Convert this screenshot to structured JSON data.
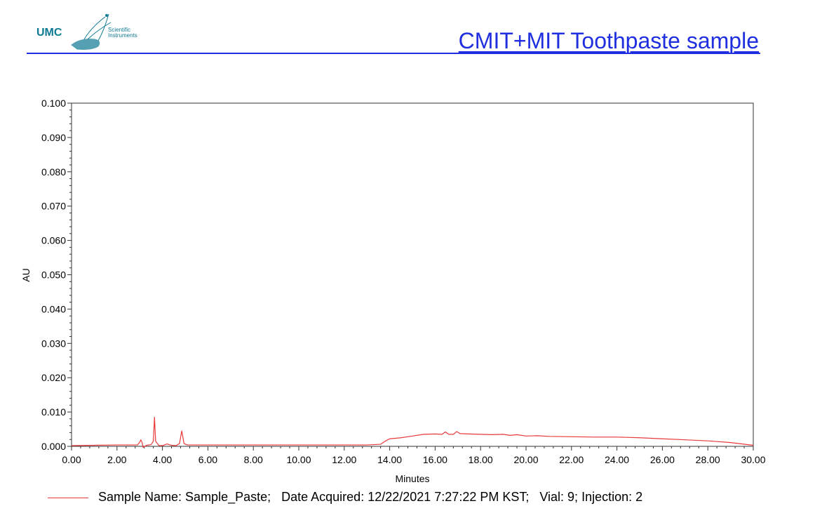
{
  "header": {
    "logo_text": "UMC",
    "logo_sub_line1": "Scientific",
    "logo_sub_line2": "Instruments",
    "title": "CMIT+MIT Toothpaste sample",
    "accent_color": "#1f2fe0",
    "logo_color": "#0e7a93"
  },
  "chart_data": {
    "type": "line",
    "title": "CMIT+MIT Toothpaste sample",
    "xlabel": "Minutes",
    "ylabel": "AU",
    "xlim": [
      0,
      30
    ],
    "ylim": [
      0,
      0.1
    ],
    "x_ticks": [
      "0.00",
      "2.00",
      "4.00",
      "6.00",
      "8.00",
      "10.00",
      "12.00",
      "14.00",
      "16.00",
      "18.00",
      "20.00",
      "22.00",
      "24.00",
      "26.00",
      "28.00",
      "30.00"
    ],
    "y_ticks": [
      "0.000",
      "0.010",
      "0.020",
      "0.030",
      "0.040",
      "0.050",
      "0.060",
      "0.070",
      "0.080",
      "0.090",
      "0.100"
    ],
    "grid": false,
    "legend_position": "bottom",
    "series": [
      {
        "name": "Sample Name: Sample_Paste;   Date Acquired: 12/22/2021 7:27:22 PM KST;   Vial: 9; Injection: 2",
        "color": "#e83a3a",
        "x": [
          0.0,
          1.0,
          2.0,
          2.9,
          3.0,
          3.05,
          3.1,
          3.15,
          3.3,
          3.5,
          3.6,
          3.65,
          3.7,
          3.78,
          3.85,
          4.0,
          4.2,
          4.4,
          4.6,
          4.75,
          4.85,
          4.95,
          5.1,
          6.0,
          8.0,
          10.0,
          12.0,
          13.0,
          13.6,
          13.8,
          14.0,
          14.5,
          15.0,
          15.5,
          16.0,
          16.3,
          16.45,
          16.6,
          16.8,
          16.95,
          17.1,
          17.5,
          18.0,
          18.5,
          19.0,
          19.3,
          19.6,
          20.0,
          20.5,
          21.0,
          22.0,
          23.0,
          24.0,
          25.0,
          26.0,
          27.0,
          28.0,
          29.0,
          30.0
        ],
        "y": [
          0.0002,
          0.0003,
          0.0004,
          0.0004,
          0.0012,
          0.0019,
          0.0012,
          -0.0003,
          0.0003,
          0.0005,
          0.0015,
          0.0085,
          0.0015,
          0.0008,
          0.0002,
          0.0002,
          0.0007,
          0.0003,
          0.0002,
          0.0008,
          0.0045,
          0.0008,
          0.0004,
          0.0004,
          0.0004,
          0.0004,
          0.0004,
          0.0004,
          0.0006,
          0.0015,
          0.0022,
          0.0025,
          0.003,
          0.0035,
          0.0036,
          0.0035,
          0.0042,
          0.0035,
          0.0035,
          0.0043,
          0.0037,
          0.0036,
          0.0035,
          0.0034,
          0.0035,
          0.0032,
          0.0034,
          0.003,
          0.0031,
          0.0029,
          0.0028,
          0.0027,
          0.0027,
          0.0025,
          0.0022,
          0.0019,
          0.0016,
          0.0011,
          0.0003
        ]
      }
    ]
  },
  "legend": {
    "text": "Sample Name: Sample_Paste;   Date Acquired: 12/22/2021 7:27:22 PM KST;   Vial: 9; Injection: 2"
  }
}
